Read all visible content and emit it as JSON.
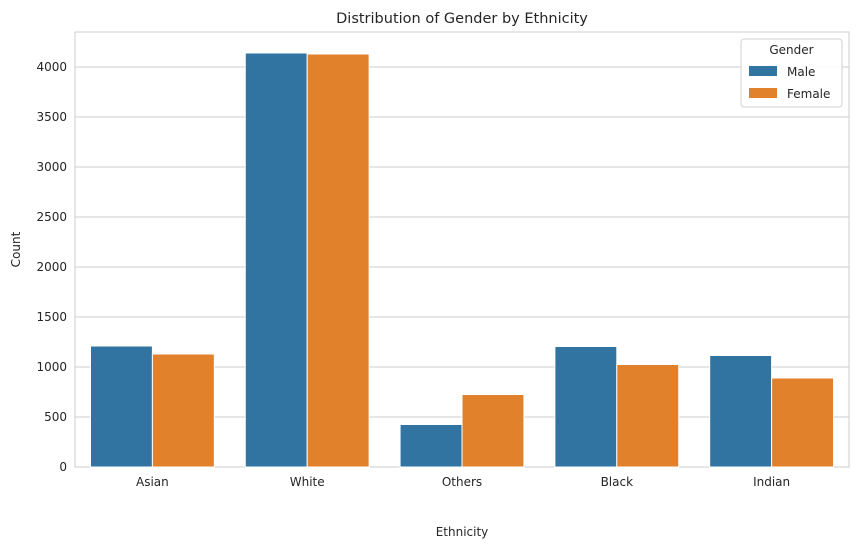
{
  "chart_data": {
    "type": "bar",
    "title": "Distribution of Gender by Ethnicity",
    "xlabel": "Ethnicity",
    "ylabel": "Count",
    "categories": [
      "Asian",
      "White",
      "Others",
      "Black",
      "Indian"
    ],
    "series": [
      {
        "name": "Male",
        "color": "#3274a1",
        "values": [
          1210,
          4140,
          425,
          1205,
          1115
        ]
      },
      {
        "name": "Female",
        "color": "#e1812c",
        "values": [
          1130,
          4130,
          725,
          1025,
          890
        ]
      }
    ],
    "ylim": [
      0,
      4350
    ],
    "yticks": [
      0,
      500,
      1000,
      1500,
      2000,
      2500,
      3000,
      3500,
      4000
    ],
    "ytick_labels": [
      "0",
      "500",
      "1000",
      "1500",
      "2000",
      "2500",
      "3000",
      "3500",
      "4000"
    ],
    "grid": "horizontal",
    "legend": {
      "title": "Gender",
      "position": "top-right"
    }
  }
}
